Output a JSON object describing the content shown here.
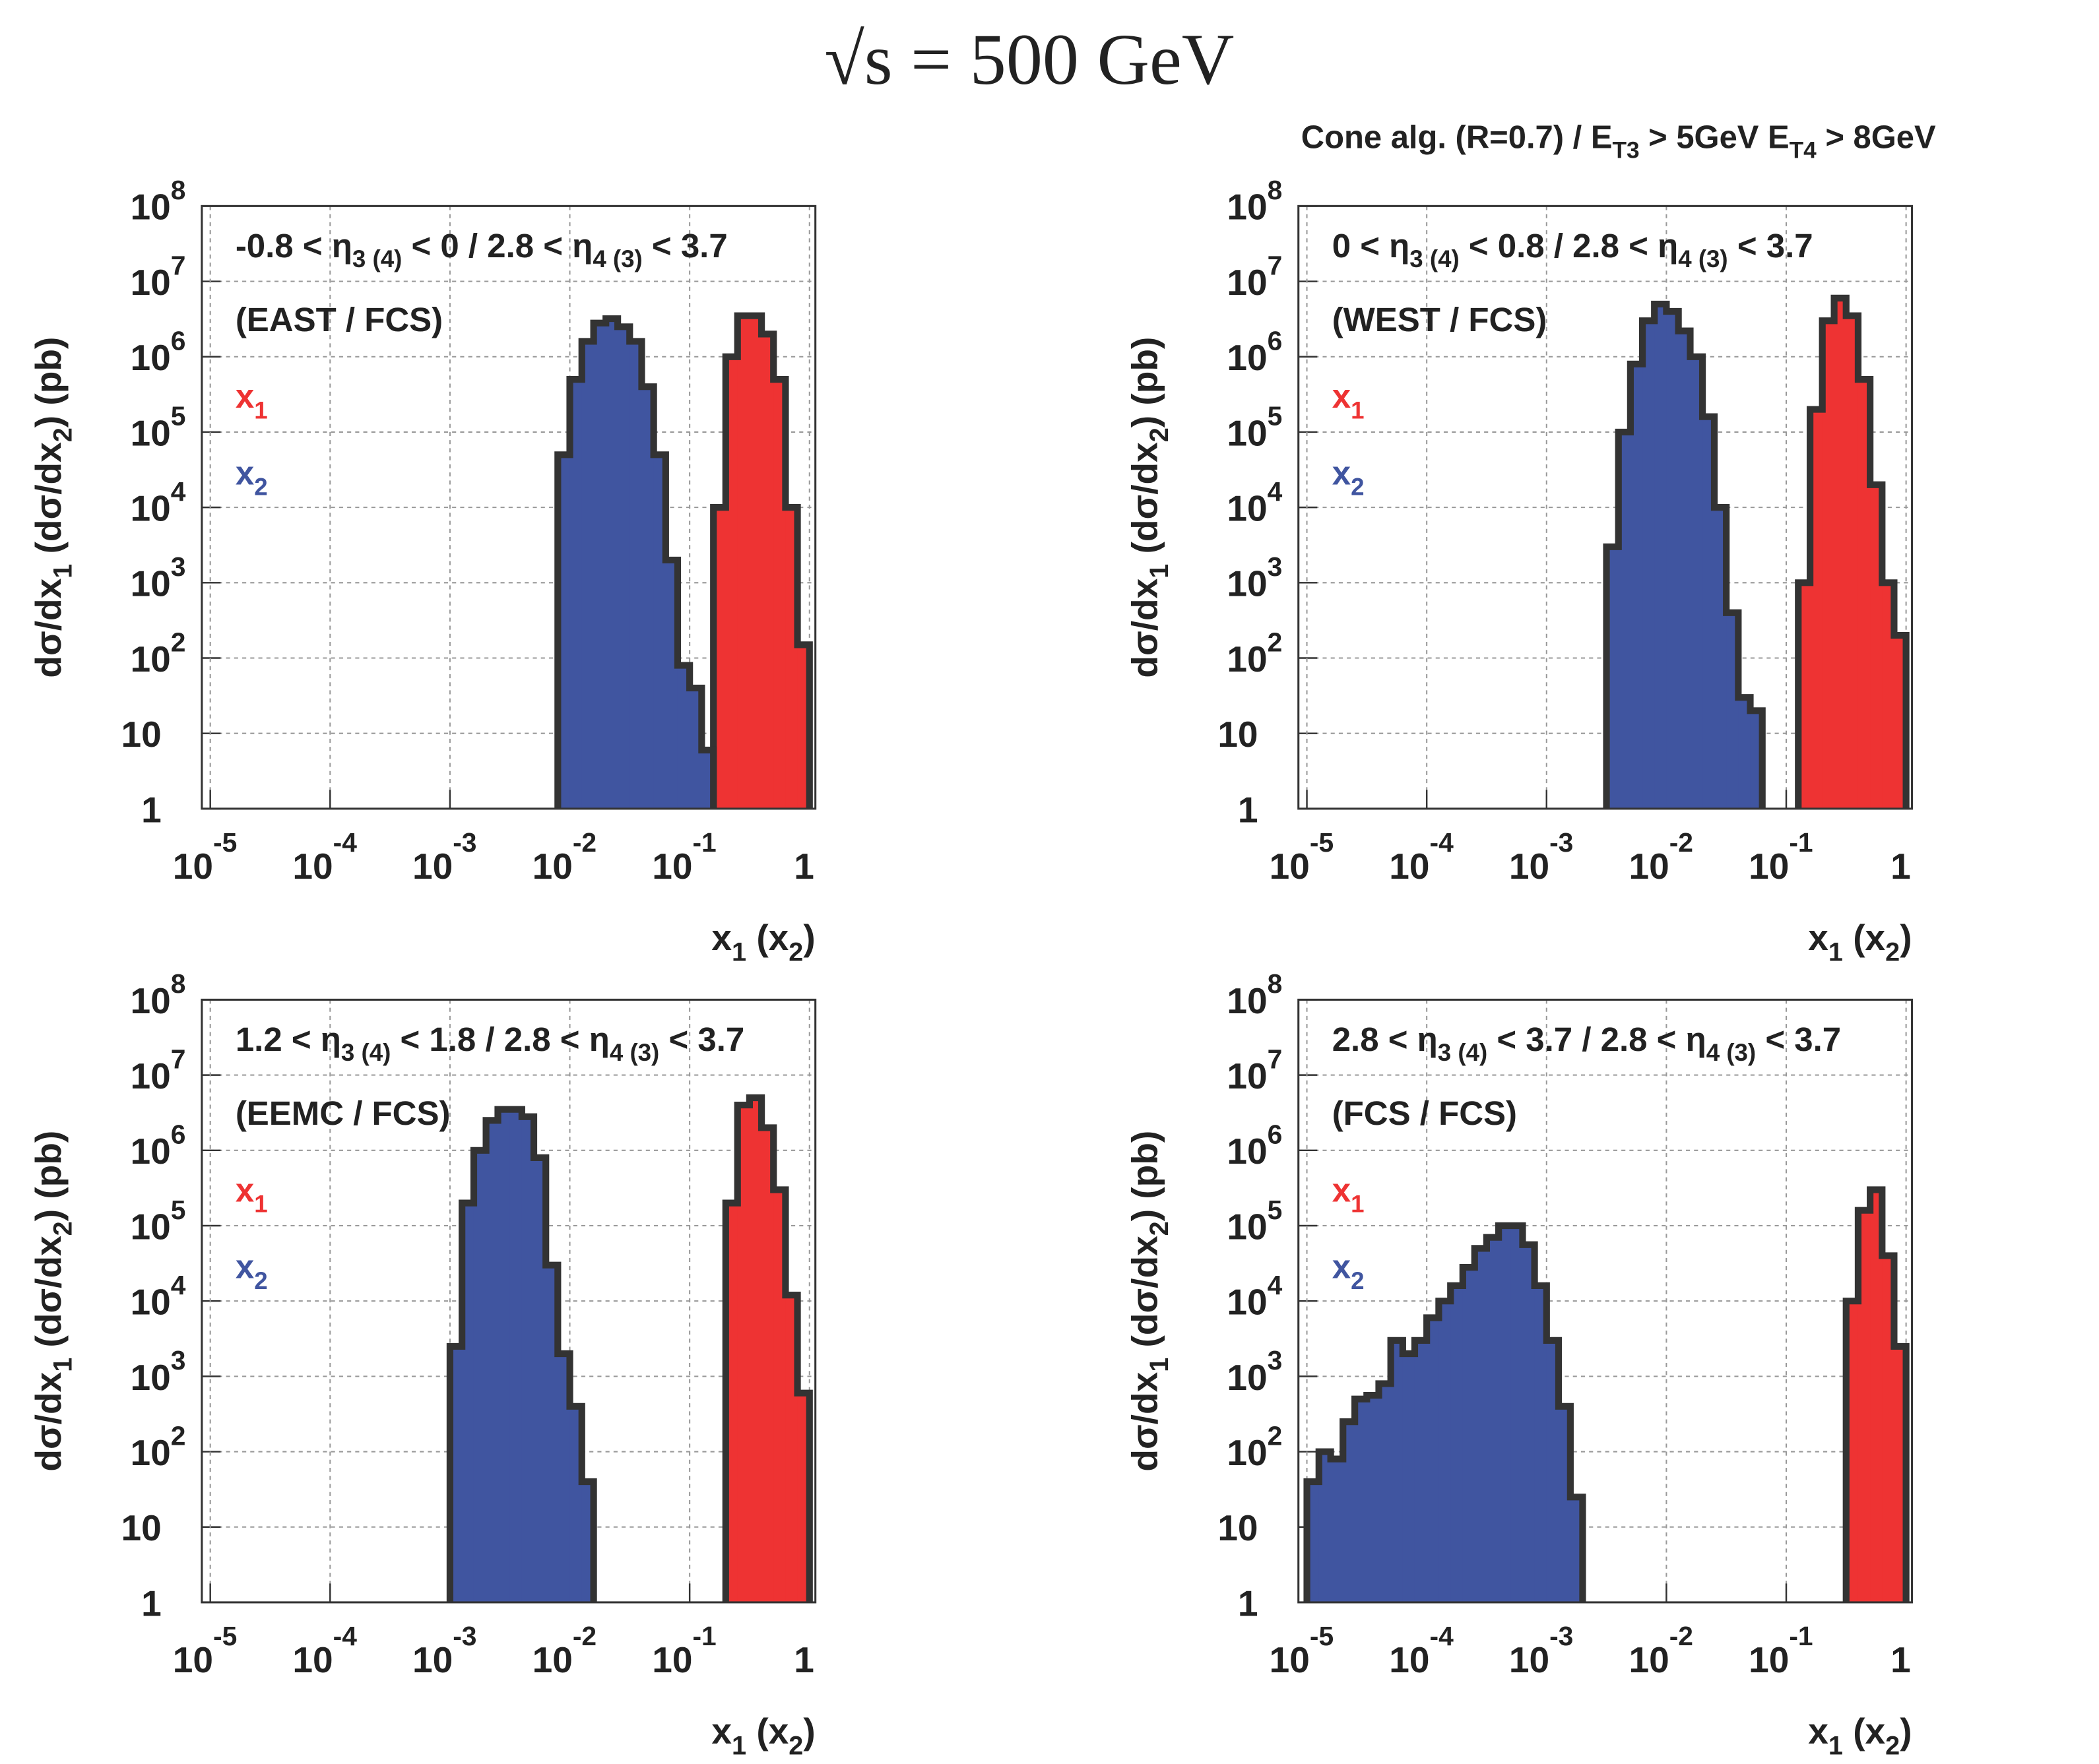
{
  "title": "√s = 500 GeV",
  "subtitle": [
    {
      "text": "Cone alg. (R=0.7) / E",
      "sub": "T3"
    },
    {
      "text": " > 5GeV  E",
      "sub": "T4"
    },
    {
      "text": " > 8GeV"
    }
  ],
  "chart_data": [
    {
      "type": "histogram",
      "xlog": true,
      "ylog": true,
      "grid": true,
      "xlim": [
        8.5e-06,
        1.12
      ],
      "ylim": [
        1,
        100000000.0
      ],
      "xticks": [
        {
          "value": 1e-05,
          "label": "10",
          "exponent": "-5"
        },
        {
          "value": 0.0001,
          "label": "10",
          "exponent": "-4"
        },
        {
          "value": 0.001,
          "label": "10",
          "exponent": "-3"
        },
        {
          "value": 0.01,
          "label": "10",
          "exponent": "-2"
        },
        {
          "value": 0.1,
          "label": "10",
          "exponent": "-1"
        },
        1
      ],
      "yticks": [
        1,
        10,
        {
          "value": 100,
          "label": "10",
          "exponent": "2"
        },
        {
          "value": 1000.0,
          "label": "10",
          "exponent": "3"
        },
        {
          "value": 10000.0,
          "label": "10",
          "exponent": "4"
        },
        {
          "value": 100000.0,
          "label": "10",
          "exponent": "5"
        },
        {
          "value": 1000000.0,
          "label": "10",
          "exponent": "6"
        },
        {
          "value": 10000000.0,
          "label": "10",
          "exponent": "7"
        },
        {
          "value": 100000000.0,
          "label": "10",
          "exponent": "8"
        }
      ],
      "xlabel": [
        {
          "text": "x",
          "sub": "1"
        },
        {
          "text": " (x",
          "sub": "2"
        },
        {
          "text": ")"
        }
      ],
      "ylabel": [
        {
          "text": "dσ/dx",
          "sub": "1"
        },
        {
          "text": " (dσ/dx",
          "sub": "2"
        },
        {
          "text": ") (pb)"
        }
      ],
      "region": [
        {
          "text": "-0.8 < η",
          "sub": "3 (4)"
        },
        {
          "text": " < 0 / 2.8 < η",
          "sub": "4 (3)"
        },
        {
          "text": " < 3.7"
        }
      ],
      "detectors": "(EAST / FCS)",
      "series": [
        {
          "name": "x",
          "subscript": "1",
          "color": "#ee3333",
          "bins": [
            0.158,
            0.2,
            0.251,
            0.316,
            0.398,
            0.501,
            0.631,
            0.794,
            1
          ],
          "values": [
            10000.0,
            1000000.0,
            3500000.0,
            3500000.0,
            2000000.0,
            500000.0,
            10000.0,
            150
          ]
        },
        {
          "name": "x",
          "subscript": "2",
          "color": "#4055a0",
          "bins": [
            0.00794,
            0.01,
            0.0126,
            0.0158,
            0.02,
            0.0251,
            0.0316,
            0.0398,
            0.0501,
            0.0631,
            0.0794,
            0.1,
            0.126,
            0.158
          ],
          "values": [
            50000.0,
            500000.0,
            1600000.0,
            2800000.0,
            3200000.0,
            2500000.0,
            1600000.0,
            400000.0,
            50000.0,
            2000.0,
            80,
            40,
            6
          ]
        }
      ]
    },
    {
      "type": "histogram",
      "xlog": true,
      "ylog": true,
      "grid": true,
      "xlim": [
        8.5e-06,
        1.12
      ],
      "ylim": [
        1,
        100000000.0
      ],
      "xticks": [
        {
          "value": 1e-05,
          "label": "10",
          "exponent": "-5"
        },
        {
          "value": 0.0001,
          "label": "10",
          "exponent": "-4"
        },
        {
          "value": 0.001,
          "label": "10",
          "exponent": "-3"
        },
        {
          "value": 0.01,
          "label": "10",
          "exponent": "-2"
        },
        {
          "value": 0.1,
          "label": "10",
          "exponent": "-1"
        },
        1
      ],
      "yticks": [
        1,
        10,
        {
          "value": 100,
          "label": "10",
          "exponent": "2"
        },
        {
          "value": 1000.0,
          "label": "10",
          "exponent": "3"
        },
        {
          "value": 10000.0,
          "label": "10",
          "exponent": "4"
        },
        {
          "value": 100000.0,
          "label": "10",
          "exponent": "5"
        },
        {
          "value": 1000000.0,
          "label": "10",
          "exponent": "6"
        },
        {
          "value": 10000000.0,
          "label": "10",
          "exponent": "7"
        },
        {
          "value": 100000000.0,
          "label": "10",
          "exponent": "8"
        }
      ],
      "xlabel": [
        {
          "text": "x",
          "sub": "1"
        },
        {
          "text": " (x",
          "sub": "2"
        },
        {
          "text": ")"
        }
      ],
      "ylabel": [
        {
          "text": "dσ/dx",
          "sub": "1"
        },
        {
          "text": " (dσ/dx",
          "sub": "2"
        },
        {
          "text": ") (pb)"
        }
      ],
      "region": [
        {
          "text": "0 < η",
          "sub": "3 (4)"
        },
        {
          "text": " < 0.8 / 2.8 < η",
          "sub": "4 (3)"
        },
        {
          "text": " < 3.7"
        }
      ],
      "detectors": "(WEST / FCS)",
      "series": [
        {
          "name": "x",
          "subscript": "1",
          "color": "#ee3333",
          "bins": [
            0.126,
            0.158,
            0.2,
            0.251,
            0.316,
            0.398,
            0.501,
            0.631,
            0.794,
            1
          ],
          "values": [
            1000.0,
            200000.0,
            3000000.0,
            6000000.0,
            3500000.0,
            500000.0,
            20000.0,
            1000.0,
            200
          ]
        },
        {
          "name": "x",
          "subscript": "2",
          "color": "#4055a0",
          "bins": [
            0.00316,
            0.00398,
            0.00501,
            0.00631,
            0.00794,
            0.01,
            0.0126,
            0.0158,
            0.02,
            0.0251,
            0.0316,
            0.0398,
            0.0501,
            0.0631
          ],
          "values": [
            3000.0,
            100000.0,
            800000.0,
            3000000.0,
            5000000.0,
            4000000.0,
            2200000.0,
            1000000.0,
            160000.0,
            10000.0,
            400,
            30,
            20
          ]
        }
      ]
    },
    {
      "type": "histogram",
      "xlog": true,
      "ylog": true,
      "grid": true,
      "xlim": [
        8.5e-06,
        1.12
      ],
      "ylim": [
        1,
        100000000.0
      ],
      "xticks": [
        {
          "value": 1e-05,
          "label": "10",
          "exponent": "-5"
        },
        {
          "value": 0.0001,
          "label": "10",
          "exponent": "-4"
        },
        {
          "value": 0.001,
          "label": "10",
          "exponent": "-3"
        },
        {
          "value": 0.01,
          "label": "10",
          "exponent": "-2"
        },
        {
          "value": 0.1,
          "label": "10",
          "exponent": "-1"
        },
        1
      ],
      "yticks": [
        1,
        10,
        {
          "value": 100,
          "label": "10",
          "exponent": "2"
        },
        {
          "value": 1000.0,
          "label": "10",
          "exponent": "3"
        },
        {
          "value": 10000.0,
          "label": "10",
          "exponent": "4"
        },
        {
          "value": 100000.0,
          "label": "10",
          "exponent": "5"
        },
        {
          "value": 1000000.0,
          "label": "10",
          "exponent": "6"
        },
        {
          "value": 10000000.0,
          "label": "10",
          "exponent": "7"
        },
        {
          "value": 100000000.0,
          "label": "10",
          "exponent": "8"
        }
      ],
      "xlabel": [
        {
          "text": "x",
          "sub": "1"
        },
        {
          "text": " (x",
          "sub": "2"
        },
        {
          "text": ")"
        }
      ],
      "ylabel": [
        {
          "text": "dσ/dx",
          "sub": "1"
        },
        {
          "text": " (dσ/dx",
          "sub": "2"
        },
        {
          "text": ") (pb)"
        }
      ],
      "region": [
        {
          "text": "1.2 < η",
          "sub": "3 (4)"
        },
        {
          "text": " < 1.8 / 2.8 < η",
          "sub": "4 (3)"
        },
        {
          "text": " < 3.7"
        }
      ],
      "detectors": "(EEMC / FCS)",
      "series": [
        {
          "name": "x",
          "subscript": "1",
          "color": "#ee3333",
          "bins": [
            0.2,
            0.251,
            0.316,
            0.398,
            0.501,
            0.631,
            0.794,
            1
          ],
          "values": [
            200000.0,
            4000000.0,
            5000000.0,
            2000000.0,
            300000.0,
            12000.0,
            600
          ]
        },
        {
          "name": "x",
          "subscript": "2",
          "color": "#4055a0",
          "bins": [
            0.001,
            0.00126,
            0.00158,
            0.002,
            0.00251,
            0.00316,
            0.00398,
            0.00501,
            0.00631,
            0.00794,
            0.01,
            0.0126,
            0.0158
          ],
          "values": [
            2500.0,
            200000.0,
            1000000.0,
            2500000.0,
            3500000.0,
            3500000.0,
            2800000.0,
            800000.0,
            30000.0,
            2000.0,
            400,
            40
          ]
        }
      ]
    },
    {
      "type": "histogram",
      "xlog": true,
      "ylog": true,
      "grid": true,
      "xlim": [
        8.5e-06,
        1.12
      ],
      "ylim": [
        1,
        100000000.0
      ],
      "xticks": [
        {
          "value": 1e-05,
          "label": "10",
          "exponent": "-5"
        },
        {
          "value": 0.0001,
          "label": "10",
          "exponent": "-4"
        },
        {
          "value": 0.001,
          "label": "10",
          "exponent": "-3"
        },
        {
          "value": 0.01,
          "label": "10",
          "exponent": "-2"
        },
        {
          "value": 0.1,
          "label": "10",
          "exponent": "-1"
        },
        1
      ],
      "yticks": [
        1,
        10,
        {
          "value": 100,
          "label": "10",
          "exponent": "2"
        },
        {
          "value": 1000.0,
          "label": "10",
          "exponent": "3"
        },
        {
          "value": 10000.0,
          "label": "10",
          "exponent": "4"
        },
        {
          "value": 100000.0,
          "label": "10",
          "exponent": "5"
        },
        {
          "value": 1000000.0,
          "label": "10",
          "exponent": "6"
        },
        {
          "value": 10000000.0,
          "label": "10",
          "exponent": "7"
        },
        {
          "value": 100000000.0,
          "label": "10",
          "exponent": "8"
        }
      ],
      "xlabel": [
        {
          "text": "x",
          "sub": "1"
        },
        {
          "text": " (x",
          "sub": "2"
        },
        {
          "text": ")"
        }
      ],
      "ylabel": [
        {
          "text": "dσ/dx",
          "sub": "1"
        },
        {
          "text": " (dσ/dx",
          "sub": "2"
        },
        {
          "text": ") (pb)"
        }
      ],
      "region": [
        {
          "text": "2.8 < η",
          "sub": "3 (4)"
        },
        {
          "text": " < 3.7 / 2.8 < η",
          "sub": "4 (3)"
        },
        {
          "text": " < 3.7"
        }
      ],
      "detectors": "(FCS / FCS)",
      "series": [
        {
          "name": "x",
          "subscript": "1",
          "color": "#ee3333",
          "bins": [
            0.316,
            0.398,
            0.501,
            0.631,
            0.794,
            1
          ],
          "values": [
            10000.0,
            160000.0,
            300000.0,
            40000.0,
            2500.0
          ]
        },
        {
          "name": "x",
          "subscript": "2",
          "color": "#4055a0",
          "bins": [
            1e-05,
            1.26e-05,
            1.58e-05,
            2e-05,
            2.51e-05,
            3.16e-05,
            3.98e-05,
            5.01e-05,
            6.31e-05,
            7.94e-05,
            0.0001,
            0.000126,
            0.000158,
            0.0002,
            0.000251,
            0.000316,
            0.000398,
            0.000501,
            0.000631,
            0.000794,
            0.001,
            0.00126,
            0.00158,
            0.002
          ],
          "values": [
            40,
            100,
            80,
            250,
            500,
            560,
            800,
            3000,
            2000,
            3000,
            6000,
            10000.0,
            16000.0,
            28000.0,
            50000.0,
            70000.0,
            100000.0,
            100000.0,
            56000.0,
            16000.0,
            3000.0,
            400,
            25
          ]
        }
      ]
    }
  ]
}
